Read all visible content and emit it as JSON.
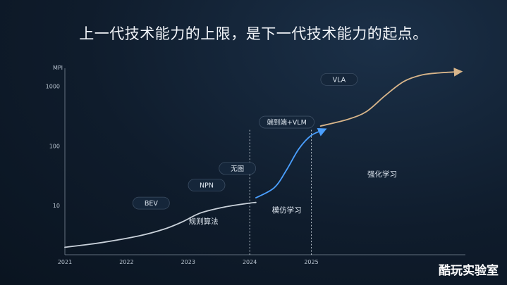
{
  "title": "上一代技术能力的上限，是下一代技术能力的起点。",
  "watermark": "酷玩实验室",
  "chart_data": {
    "type": "line",
    "ylabel": "MPI",
    "y_scale": "log",
    "yticks": [
      10,
      100,
      1000
    ],
    "ylim": [
      1.5,
      2000
    ],
    "xticks": [
      "2021",
      "2022",
      "2023",
      "2024",
      "2025"
    ],
    "xlim": [
      2021.0,
      2027.5
    ],
    "grid": false,
    "series": [
      {
        "color": "#c9d1da",
        "x": [
          2021.0,
          2021.6,
          2022.2,
          2022.6,
          2022.9,
          2023.2,
          2023.6,
          2024.0,
          2024.1
        ],
        "y": [
          2.0,
          2.4,
          3.1,
          4.0,
          5.3,
          7.5,
          9.5,
          11.0,
          11.3
        ]
      },
      {
        "color": "#4a9fff",
        "x": [
          2024.1,
          2024.4,
          2024.6,
          2024.8,
          2025.0,
          2025.2
        ],
        "y": [
          13.5,
          20,
          40,
          90,
          150,
          185
        ]
      },
      {
        "color": "#d8b58a",
        "x": [
          2025.15,
          2025.6,
          2025.9,
          2026.2,
          2026.5,
          2026.8,
          2027.1,
          2027.4
        ],
        "y": [
          215,
          280,
          380,
          700,
          1200,
          1550,
          1680,
          1750
        ]
      }
    ],
    "dividers": [
      2024.0,
      2025.0
    ],
    "labels": [
      {
        "text": "BEV",
        "kind": "pill",
        "x": 2022.4,
        "y": 11
      },
      {
        "text": "NPN",
        "kind": "pill",
        "x": 2023.3,
        "y": 22
      },
      {
        "text": "无图",
        "kind": "pill",
        "x": 2023.8,
        "y": 42
      },
      {
        "text": "端到端+VLM",
        "kind": "pill",
        "x": 2024.6,
        "y": 250
      },
      {
        "text": "VLA",
        "kind": "pill",
        "x": 2025.45,
        "y": 1300
      },
      {
        "text": "规则算法",
        "kind": "phase",
        "x": 2023.25,
        "y": 5.5
      },
      {
        "text": "模仿学习",
        "kind": "phase",
        "x": 2024.6,
        "y": 8.5
      },
      {
        "text": "强化学习",
        "kind": "phase",
        "x": 2026.15,
        "y": 34
      }
    ]
  }
}
